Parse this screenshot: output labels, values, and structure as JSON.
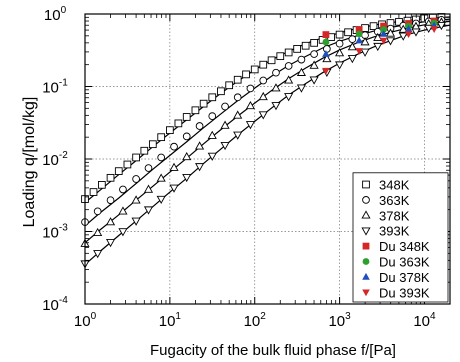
{
  "chart_data": {
    "type": "scatter",
    "xlabel": "Fugacity of the bulk fluid phase f/[Pa]",
    "ylabel": "Loading q/[mol/kg]",
    "xscale": "log",
    "yscale": "log",
    "xlim": [
      1,
      20000
    ],
    "ylim": [
      0.0001,
      1
    ],
    "grid": true,
    "legend_position": "bottom-right",
    "x_ticks": [
      {
        "value": 1,
        "base": "10",
        "exp": "0"
      },
      {
        "value": 10,
        "base": "10",
        "exp": "1"
      },
      {
        "value": 100,
        "base": "10",
        "exp": "2"
      },
      {
        "value": 1000,
        "base": "10",
        "exp": "3"
      },
      {
        "value": 10000,
        "base": "10",
        "exp": "4"
      }
    ],
    "y_ticks": [
      {
        "value": 0.0001,
        "base": "10",
        "exp": "-4"
      },
      {
        "value": 0.001,
        "base": "10",
        "exp": "-3"
      },
      {
        "value": 0.01,
        "base": "10",
        "exp": "-2"
      },
      {
        "value": 0.1,
        "base": "10",
        "exp": "-1"
      },
      {
        "value": 1,
        "base": "10",
        "exp": "0"
      }
    ],
    "fit_curves": [
      {
        "x": [
          1,
          1.5,
          2.5,
          4,
          6.3,
          10,
          16,
          25,
          40,
          63,
          100,
          160,
          250,
          400,
          630,
          1000,
          1600,
          2500,
          4000,
          6300,
          10000,
          16000,
          20000
        ],
        "y": [
          0.0025,
          0.0037,
          0.0061,
          0.0095,
          0.0148,
          0.0228,
          0.0352,
          0.053,
          0.081,
          0.118,
          0.17,
          0.235,
          0.305,
          0.39,
          0.47,
          0.55,
          0.63,
          0.7,
          0.76,
          0.81,
          0.86,
          0.9,
          0.91
        ]
      },
      {
        "x": [
          1,
          1.5,
          2.5,
          4,
          6.3,
          10,
          16,
          25,
          40,
          63,
          100,
          160,
          250,
          400,
          630,
          1000,
          1600,
          2500,
          4000,
          6300,
          10000,
          16000,
          20000
        ],
        "y": [
          0.0012,
          0.0018,
          0.0029,
          0.0046,
          0.0072,
          0.0112,
          0.0175,
          0.027,
          0.042,
          0.064,
          0.095,
          0.14,
          0.195,
          0.26,
          0.34,
          0.42,
          0.5,
          0.58,
          0.65,
          0.72,
          0.78,
          0.83,
          0.85
        ]
      },
      {
        "x": [
          1,
          1.5,
          2.5,
          4,
          6.3,
          10,
          16,
          25,
          40,
          63,
          100,
          160,
          250,
          400,
          630,
          1000,
          1600,
          2500,
          4000,
          6300,
          10000,
          16000,
          20000
        ],
        "y": [
          0.0007,
          0.00105,
          0.0017,
          0.0027,
          0.0042,
          0.0066,
          0.0104,
          0.0162,
          0.0255,
          0.039,
          0.059,
          0.089,
          0.128,
          0.18,
          0.245,
          0.32,
          0.4,
          0.48,
          0.56,
          0.64,
          0.71,
          0.77,
          0.79
        ]
      },
      {
        "x": [
          1,
          1.5,
          2.5,
          4,
          6.3,
          10,
          16,
          25,
          40,
          63,
          100,
          160,
          250,
          400,
          630,
          1000,
          1600,
          2500,
          4000,
          6300,
          10000,
          16000,
          20000
        ],
        "y": [
          0.00035,
          0.00053,
          0.00088,
          0.0014,
          0.0022,
          0.0035,
          0.0055,
          0.0087,
          0.0138,
          0.0215,
          0.033,
          0.051,
          0.076,
          0.11,
          0.155,
          0.21,
          0.275,
          0.35,
          0.43,
          0.52,
          0.6,
          0.67,
          0.7
        ]
      }
    ],
    "series": [
      {
        "name": "348K",
        "marker": "square-open",
        "color": "#000000",
        "x": [
          1,
          1.26,
          1.58,
          2,
          2.5,
          3.16,
          4,
          5,
          6.3,
          7.9,
          10,
          12.6,
          15.8,
          20,
          25,
          31.6,
          40,
          50,
          63,
          79,
          100,
          126,
          158,
          200,
          251,
          316,
          398,
          501,
          631,
          794,
          1000,
          1259,
          1585,
          1995,
          2512,
          3162,
          3981,
          5012,
          6310,
          7943,
          10000,
          12589,
          15849
        ],
        "y": [
          0.0028,
          0.0035,
          0.0044,
          0.0055,
          0.0068,
          0.0084,
          0.0105,
          0.013,
          0.016,
          0.02,
          0.025,
          0.031,
          0.038,
          0.047,
          0.058,
          0.071,
          0.086,
          0.104,
          0.124,
          0.147,
          0.172,
          0.2,
          0.23,
          0.262,
          0.295,
          0.33,
          0.365,
          0.4,
          0.44,
          0.48,
          0.52,
          0.56,
          0.6,
          0.64,
          0.68,
          0.72,
          0.75,
          0.78,
          0.81,
          0.84,
          0.87,
          0.89,
          0.91
        ]
      },
      {
        "name": "363K",
        "marker": "circle-open",
        "color": "#000000",
        "x": [
          1,
          1.41,
          2,
          2.8,
          4,
          5.6,
          7.9,
          11.2,
          15.8,
          22.4,
          31.6,
          44.7,
          63,
          89,
          126,
          178,
          251,
          355,
          501,
          708,
          1000,
          1413,
          1995,
          2818,
          3981,
          5623,
          7943,
          11220,
          15849
        ],
        "y": [
          0.00135,
          0.0019,
          0.0027,
          0.0038,
          0.0053,
          0.0075,
          0.0105,
          0.0148,
          0.0205,
          0.0285,
          0.039,
          0.053,
          0.071,
          0.094,
          0.121,
          0.155,
          0.192,
          0.235,
          0.28,
          0.33,
          0.39,
          0.45,
          0.51,
          0.57,
          0.63,
          0.69,
          0.74,
          0.79,
          0.83
        ]
      },
      {
        "name": "378K",
        "marker": "triangle-up-open",
        "color": "#000000",
        "x": [
          1,
          1.41,
          2,
          2.8,
          4,
          5.6,
          7.9,
          11.2,
          15.8,
          22.4,
          31.6,
          44.7,
          63,
          89,
          126,
          178,
          251,
          355,
          501,
          708,
          1000,
          1413,
          1995,
          2818,
          3981,
          5623,
          7943,
          11220,
          15849
        ],
        "y": [
          0.00068,
          0.00096,
          0.00135,
          0.0019,
          0.0027,
          0.0038,
          0.0054,
          0.0076,
          0.0107,
          0.015,
          0.021,
          0.029,
          0.04,
          0.054,
          0.072,
          0.095,
          0.122,
          0.155,
          0.195,
          0.24,
          0.29,
          0.35,
          0.41,
          0.47,
          0.54,
          0.61,
          0.67,
          0.73,
          0.77
        ]
      },
      {
        "name": "393K",
        "marker": "triangle-down-open",
        "color": "#000000",
        "x": [
          1,
          1.41,
          2,
          2.8,
          4,
          5.6,
          7.9,
          11.2,
          15.8,
          22.4,
          31.6,
          44.7,
          63,
          89,
          126,
          178,
          251,
          355,
          501,
          708,
          1000,
          1413,
          1995,
          2818,
          3981,
          5623,
          7943,
          11220,
          15849
        ],
        "y": [
          0.00036,
          0.0005,
          0.00071,
          0.001,
          0.0014,
          0.002,
          0.0028,
          0.004,
          0.0056,
          0.0079,
          0.011,
          0.0155,
          0.0215,
          0.03,
          0.041,
          0.055,
          0.073,
          0.096,
          0.124,
          0.158,
          0.2,
          0.245,
          0.3,
          0.36,
          0.43,
          0.5,
          0.57,
          0.64,
          0.7
        ]
      },
      {
        "name": "Du 348K",
        "marker": "square-filled",
        "color": "#d62728",
        "x": [
          690,
          1700,
          3300,
          6500,
          13000
        ],
        "y": [
          0.52,
          0.61,
          0.68,
          0.74,
          0.8
        ]
      },
      {
        "name": "Du 363K",
        "marker": "circle-filled",
        "color": "#2ca02c",
        "x": [
          690,
          1700,
          3300,
          6500,
          13000
        ],
        "y": [
          0.41,
          0.53,
          0.61,
          0.68,
          0.75
        ]
      },
      {
        "name": "Du 378K",
        "marker": "triangle-up-filled",
        "color": "#1f4fbf",
        "x": [
          690,
          1700,
          3300,
          6500,
          13000
        ],
        "y": [
          0.28,
          0.43,
          0.53,
          0.62,
          0.69
        ]
      },
      {
        "name": "Du 393K",
        "marker": "triangle-down-filled",
        "color": "#d62728",
        "x": [
          690,
          1700,
          3300,
          6500,
          13000
        ],
        "y": [
          0.165,
          0.31,
          0.43,
          0.53,
          0.62
        ]
      }
    ]
  }
}
